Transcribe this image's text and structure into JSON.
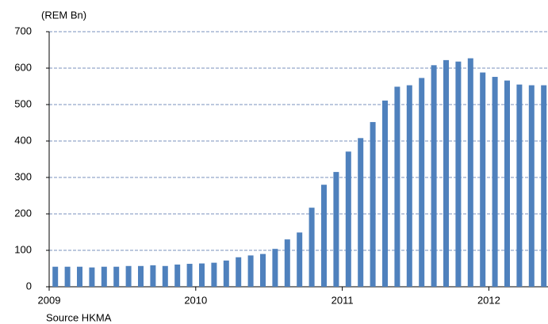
{
  "chart_data": {
    "type": "bar",
    "y_label": "(REM Bn)",
    "source": "Source HKMA",
    "categories": [
      "2009",
      null,
      null,
      null,
      null,
      null,
      null,
      null,
      null,
      null,
      null,
      null,
      "2010",
      null,
      null,
      null,
      null,
      null,
      null,
      null,
      null,
      null,
      null,
      null,
      "2011",
      null,
      null,
      null,
      null,
      null,
      null,
      null,
      null,
      null,
      null,
      null,
      "2012",
      null,
      null,
      null,
      null
    ],
    "values": [
      55,
      55,
      55,
      53,
      55,
      55,
      57,
      57,
      59,
      57,
      61,
      63,
      64,
      66,
      72,
      81,
      86,
      90,
      104,
      130,
      149,
      217,
      280,
      315,
      371,
      408,
      452,
      511,
      549,
      553,
      573,
      608,
      622,
      618,
      627,
      588,
      576,
      566,
      555,
      553,
      553
    ],
    "color": "#4f81bd",
    "ylim": [
      0,
      700
    ],
    "yticks": [
      0,
      100,
      200,
      300,
      400,
      500,
      600,
      700
    ],
    "grid": true
  }
}
